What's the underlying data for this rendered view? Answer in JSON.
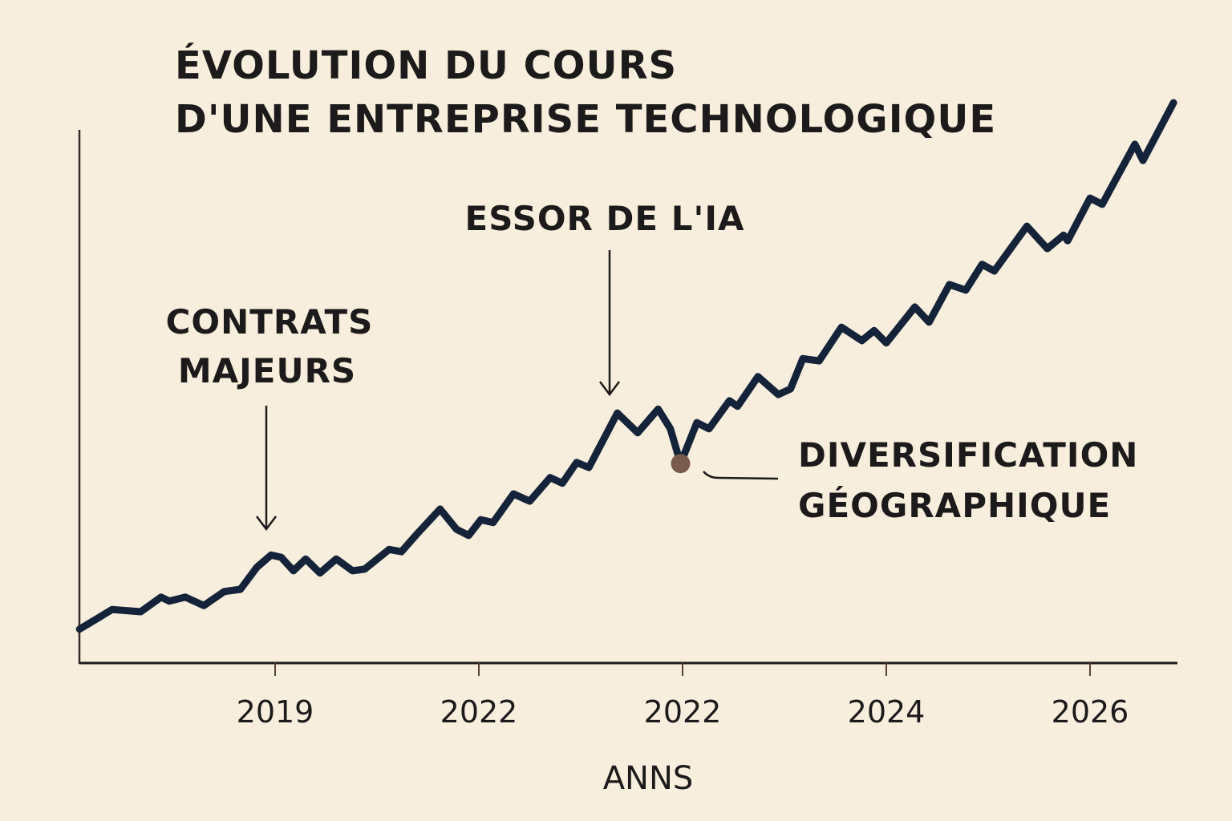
{
  "chart_data": {
    "type": "line",
    "title_lines": [
      "ÉVOLUTION DU COURS",
      "D'UNE ENTREPRISE TECHNOLOGIQUE"
    ],
    "xlabel": "ANNS",
    "ylabel": "",
    "x_ticks": [
      "2019",
      "2022",
      "2022",
      "2024",
      "2026"
    ],
    "x_note_units": "tick index (0 = first tick label, 4 = last)",
    "xlim": [
      -0.96,
      4.45
    ],
    "ylim": [
      0,
      100
    ],
    "y_ticks_shown": false,
    "grid": false,
    "legend": "none",
    "colors": {
      "background": "#f8eedd",
      "line": "#14233a",
      "axis": "#3a2a28",
      "marker": "#7a5a4c",
      "text": "#1c1a1a"
    },
    "series": [
      {
        "x": [
          -0.96,
          -0.8,
          -0.66,
          -0.56,
          -0.52,
          -0.44,
          -0.35,
          -0.25,
          -0.17,
          -0.09,
          -0.02,
          0.03,
          0.09,
          0.15,
          0.22,
          0.3,
          0.38,
          0.44,
          0.56,
          0.62,
          0.7,
          0.81,
          0.89,
          0.95,
          1.01,
          1.07,
          1.17,
          1.25,
          1.35,
          1.41,
          1.48,
          1.54,
          1.68,
          1.78,
          1.88,
          1.94,
          1.99,
          2.07,
          2.13,
          2.23,
          2.27,
          2.37,
          2.47,
          2.53,
          2.59,
          2.67,
          2.78,
          2.88,
          2.94,
          3.0,
          3.14,
          3.21,
          3.31,
          3.39,
          3.47,
          3.53,
          3.69,
          3.79,
          3.87,
          3.89,
          4.0,
          4.06,
          4.22,
          4.26,
          4.41
        ],
        "y": [
          5.9,
          9.4,
          9.0,
          11.6,
          10.9,
          11.6,
          10.1,
          12.6,
          13.0,
          16.9,
          19.1,
          18.7,
          16.3,
          18.4,
          15.9,
          18.4,
          16.3,
          16.6,
          20.1,
          19.7,
          23.0,
          27.3,
          23.7,
          22.6,
          25.4,
          24.9,
          30.0,
          28.7,
          32.9,
          31.9,
          35.6,
          34.7,
          44.4,
          40.9,
          45.1,
          41.6,
          35.4,
          42.7,
          41.6,
          46.6,
          45.6,
          50.9,
          47.7,
          48.7,
          54.1,
          53.7,
          59.7,
          57.3,
          59.1,
          56.9,
          63.3,
          60.6,
          67.3,
          66.3,
          70.9,
          69.7,
          77.7,
          73.7,
          76.1,
          75.1,
          82.7,
          81.6,
          92.3,
          89.4,
          99.7
        ]
      }
    ],
    "highlight_point": {
      "x": 1.99,
      "y": 35.4
    },
    "annotations": [
      {
        "lines": [
          "CONTRATS",
          "MAJEURS"
        ],
        "target": {
          "x": -0.04,
          "y": 23
        }
      },
      {
        "lines": [
          "ESSOR DE L'IA"
        ],
        "target": {
          "x": 1.64,
          "y": 48
        }
      },
      {
        "lines": [
          "DIVERSIFICATION",
          "GÉOGRAPHIQUE"
        ],
        "target": {
          "x": 2.11,
          "y": 33.7
        }
      }
    ]
  }
}
